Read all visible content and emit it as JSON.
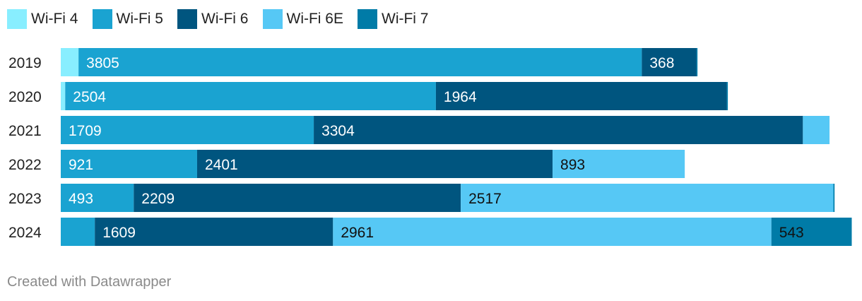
{
  "chart_data": {
    "type": "bar",
    "orientation": "horizontal",
    "stacked": true,
    "categories": [
      "2019",
      "2020",
      "2021",
      "2022",
      "2023",
      "2024"
    ],
    "series": [
      {
        "name": "Wi-Fi 4",
        "color": "#88EEFF",
        "values": [
          120,
          30,
          0,
          0,
          0,
          0
        ],
        "labels": [
          "",
          "",
          "",
          "",
          "",
          ""
        ]
      },
      {
        "name": "Wi-Fi 5",
        "color": "#1AA3D1",
        "values": [
          3805,
          2504,
          1709,
          921,
          493,
          230
        ],
        "labels": [
          "3805",
          "2504",
          "1709",
          "921",
          "493",
          ""
        ]
      },
      {
        "name": "Wi-Fi 6",
        "color": "#00557F",
        "values": [
          368,
          1964,
          3304,
          2401,
          2209,
          1609
        ],
        "labels": [
          "368",
          "1964",
          "3304",
          "2401",
          "2209",
          "1609"
        ]
      },
      {
        "name": "Wi-Fi 6E",
        "color": "#56C8F5",
        "values": [
          0,
          0,
          180,
          893,
          2517,
          2961
        ],
        "labels": [
          "",
          "",
          "",
          "893",
          "2517",
          "2961"
        ]
      },
      {
        "name": "Wi-Fi 7",
        "color": "#007BA7",
        "values": [
          8,
          8,
          0,
          0,
          8,
          543
        ],
        "labels": [
          "",
          "",
          "",
          "",
          "",
          "543"
        ]
      }
    ],
    "label_text_colors": [
      "#ffffff",
      "#ffffff",
      "#ffffff",
      "#111111",
      "#111111"
    ],
    "xlim": [
      0,
      5355
    ],
    "grid": false,
    "legend": "top-left"
  },
  "footer": {
    "credit": "Created with Datawrapper"
  }
}
